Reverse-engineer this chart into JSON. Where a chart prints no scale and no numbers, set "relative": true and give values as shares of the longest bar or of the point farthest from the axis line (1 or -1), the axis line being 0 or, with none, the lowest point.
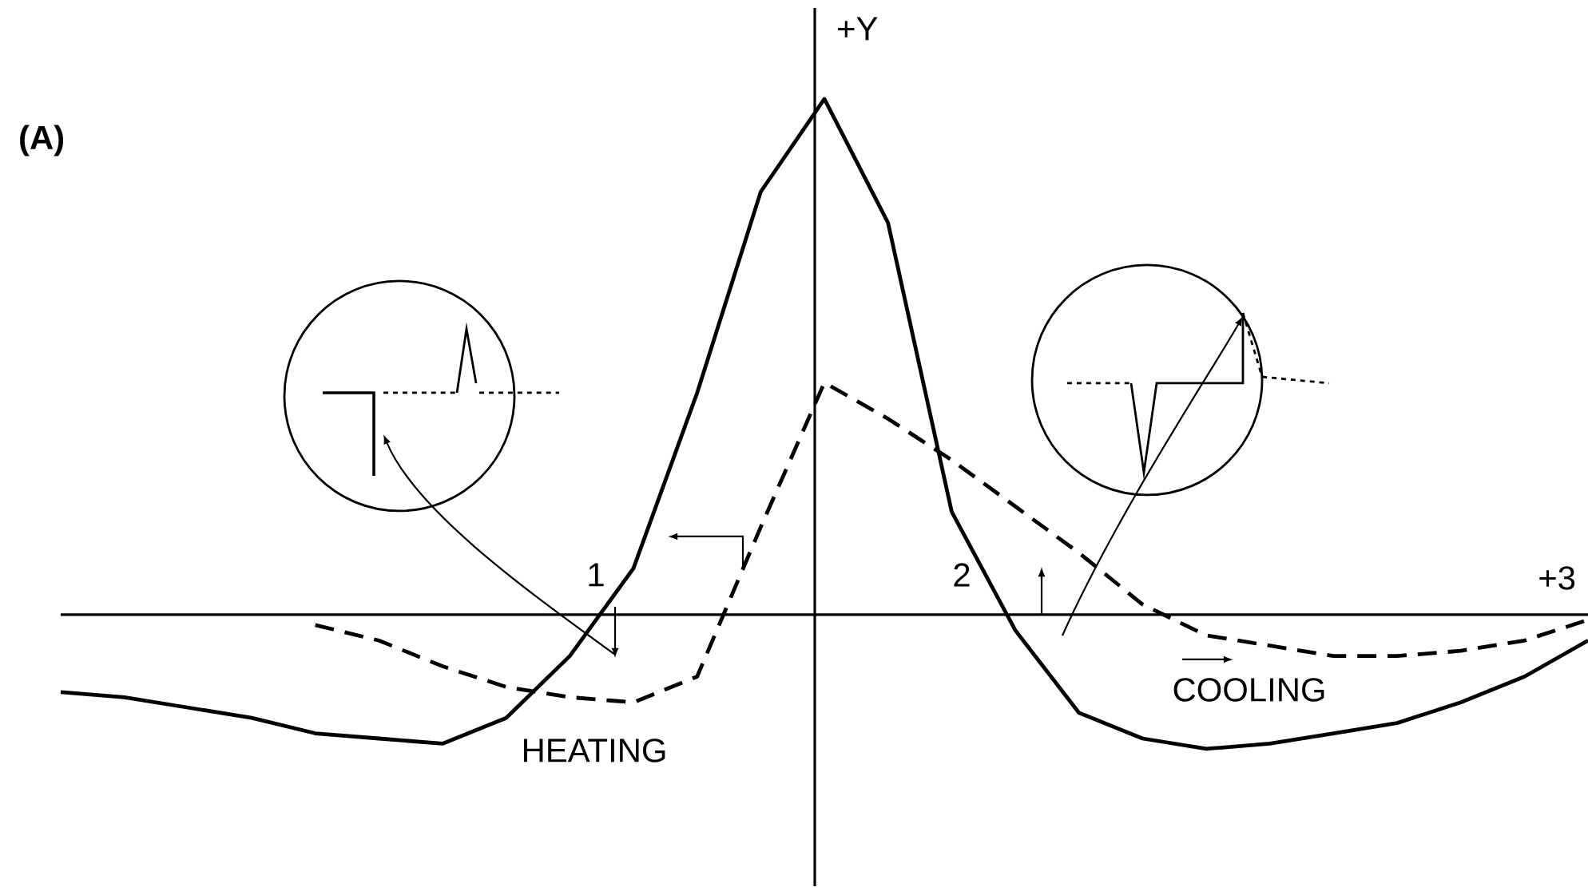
{
  "chart_data": {
    "type": "line",
    "title": "(A)",
    "xlabel": "+3",
    "ylabel": "+Y",
    "relative": true,
    "categories": [
      null,
      null,
      null,
      null,
      null,
      null,
      null,
      null,
      null,
      null,
      null,
      null,
      null,
      null,
      null,
      null,
      null,
      null,
      null,
      null,
      null,
      null,
      null,
      null,
      null
    ],
    "series": [
      {
        "color": "#000000",
        "line_style": "solid",
        "values": [
          -0.15,
          -0.16,
          -0.18,
          -0.2,
          -0.23,
          -0.24,
          -0.25,
          -0.2,
          -0.08,
          0.09,
          0.43,
          0.82,
          1.0,
          0.76,
          0.2,
          -0.03,
          -0.19,
          -0.24,
          -0.26,
          -0.25,
          -0.23,
          -0.21,
          -0.17,
          -0.12,
          -0.05
        ]
      },
      {
        "color": "#000000",
        "line_style": "dashed",
        "values": [
          null,
          null,
          null,
          null,
          -0.02,
          -0.05,
          -0.1,
          -0.14,
          -0.16,
          -0.17,
          -0.12,
          0.17,
          0.45,
          0.38,
          0.3,
          0.21,
          0.12,
          0.02,
          -0.04,
          -0.06,
          -0.08,
          -0.08,
          -0.07,
          -0.05,
          -0.01
        ]
      }
    ],
    "annotations": [
      "1",
      "2",
      "HEATING",
      "COOLING"
    ]
  }
}
